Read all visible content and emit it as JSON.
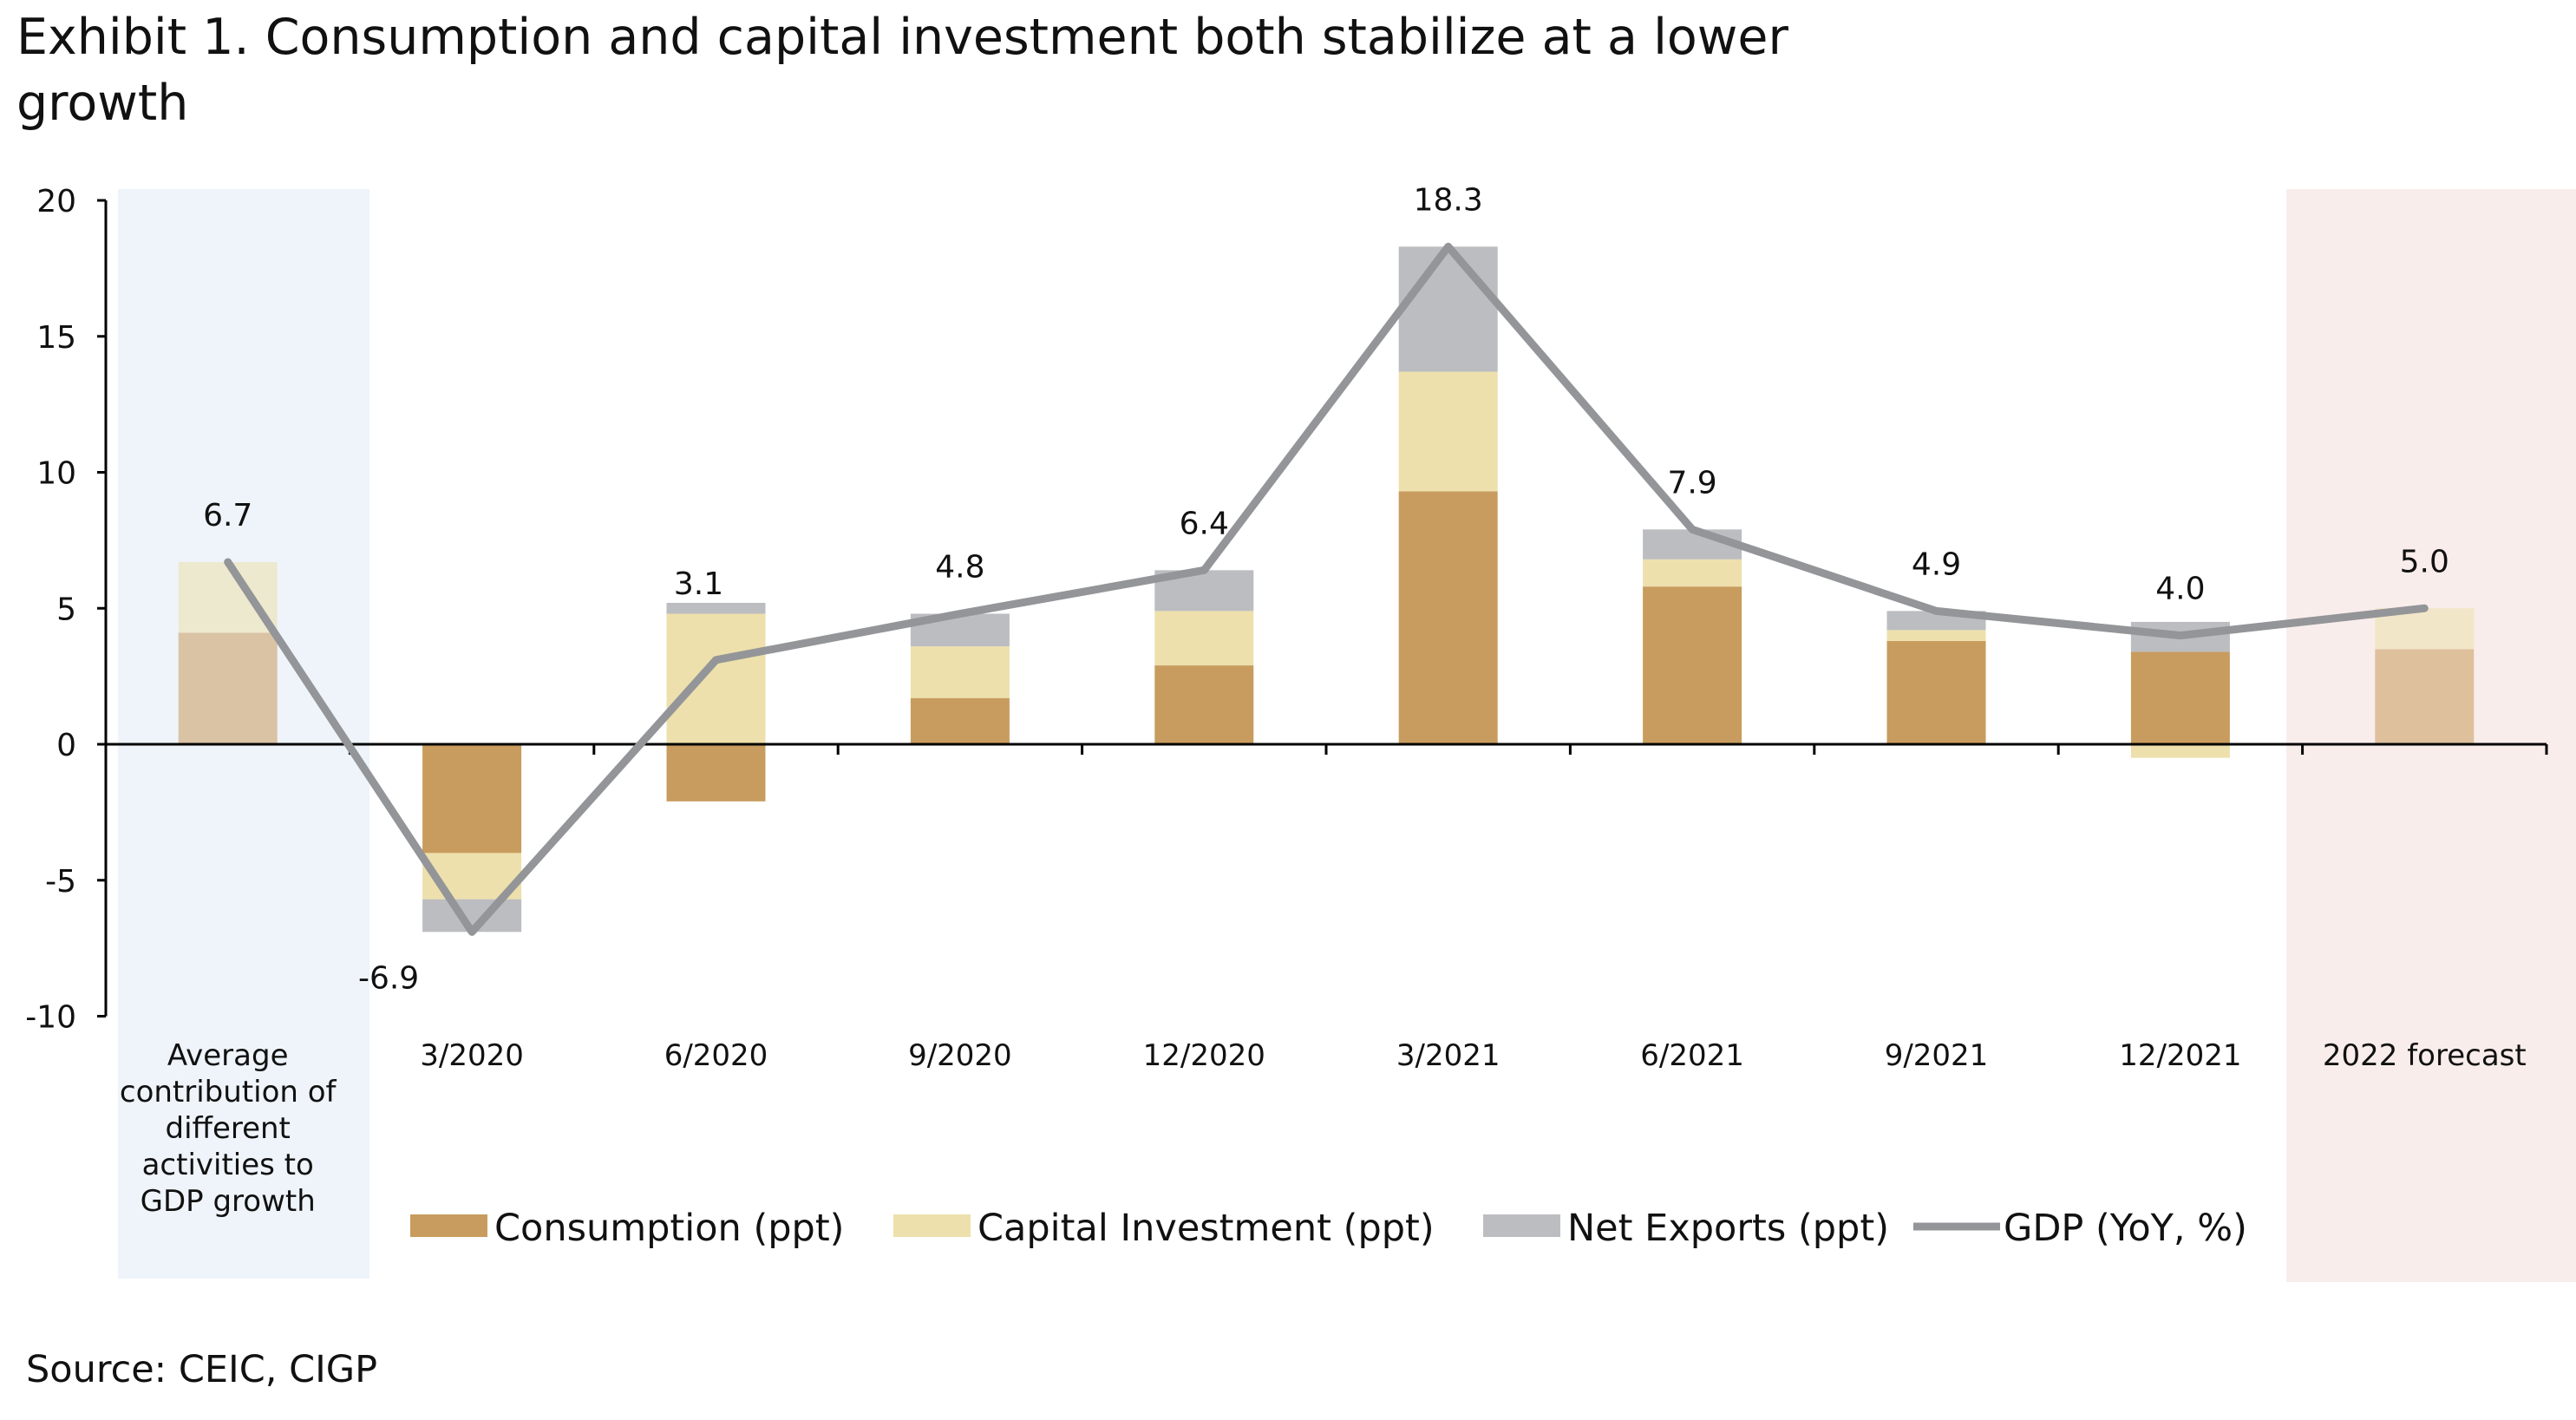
{
  "title": "Exhibit 1. Consumption and capital investment both stabilize at a lower growth",
  "title_lines": [
    "Exhibit 1. Consumption and capital investment both stabilize at a lower",
    "growth"
  ],
  "source": "Source: CEIC, CIGP",
  "chart_data": {
    "type": "bar",
    "stacked": true,
    "categories": [
      "Average contribution of different activities to GDP growth",
      "3/2020",
      "6/2020",
      "9/2020",
      "12/2020",
      "3/2021",
      "6/2021",
      "9/2021",
      "12/2021",
      "2022 forecast"
    ],
    "category_lines": [
      [
        "Average",
        "contribution of",
        "different",
        "activities to",
        "GDP growth"
      ],
      [
        "3/2020"
      ],
      [
        "6/2020"
      ],
      [
        "9/2020"
      ],
      [
        "12/2020"
      ],
      [
        "3/2021"
      ],
      [
        "6/2021"
      ],
      [
        "9/2021"
      ],
      [
        "12/2021"
      ],
      [
        "2022 forecast"
      ]
    ],
    "series": [
      {
        "name": "Consumption (ppt)",
        "type": "bar",
        "color": "#C89C5E",
        "values": [
          4.1,
          -4.0,
          -2.1,
          1.7,
          2.9,
          9.3,
          5.8,
          3.8,
          3.4,
          3.5
        ]
      },
      {
        "name": "Capital Investment (ppt)",
        "type": "bar",
        "color": "#EDE0AC",
        "values": [
          2.6,
          -1.7,
          4.8,
          1.9,
          2.0,
          4.4,
          1.0,
          0.4,
          -0.5,
          1.5
        ]
      },
      {
        "name": "Net Exports (ppt)",
        "type": "bar",
        "color": "#BCBDC0",
        "values": [
          0.0,
          -1.2,
          0.4,
          1.2,
          1.5,
          4.6,
          1.1,
          0.7,
          1.1,
          0.0
        ]
      },
      {
        "name": "GDP (YoY, %)",
        "type": "line",
        "color": "#939598",
        "values": [
          6.7,
          -6.9,
          3.1,
          4.8,
          6.4,
          18.3,
          7.9,
          4.9,
          4.0,
          5.0
        ]
      }
    ],
    "data_labels": [
      "6.7",
      "-6.9",
      "3.1",
      "4.8",
      "6.4",
      "18.3",
      "7.9",
      "4.9",
      "4.0",
      "5.0"
    ],
    "ylim": [
      -10,
      20
    ],
    "yticks": [
      "20",
      "15",
      "10",
      "5",
      "0",
      "-5",
      "-10"
    ],
    "ytick_values": [
      20,
      15,
      10,
      5,
      0,
      -5,
      -10
    ],
    "xlabel": "",
    "ylabel": "",
    "grid": false,
    "legend_position": "bottom",
    "highlight_colors": {
      "average": "#EEF4FA",
      "forecast": "#F9EDEB"
    }
  }
}
